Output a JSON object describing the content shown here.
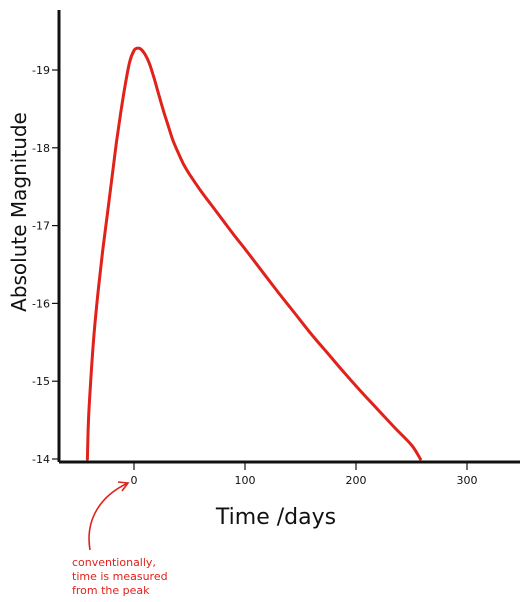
{
  "chart_data": {
    "type": "line",
    "title": "",
    "xlabel": "Time /days",
    "ylabel": "Absolute Magnitude",
    "xlim": [
      -60,
      350
    ],
    "ylim": [
      -14,
      -19.7
    ],
    "x_ticks": [
      0,
      100,
      200,
      300
    ],
    "x_tick_labels": [
      "0",
      "100",
      "200",
      "300"
    ],
    "y_ticks": [
      -19,
      -18,
      -17,
      -16,
      -15,
      -14
    ],
    "y_tick_labels": [
      "-19",
      "-18",
      "-17",
      "-16",
      "-15",
      "-14"
    ],
    "grid": false,
    "legend": "none",
    "series": [
      {
        "color": "#e0221b",
        "x": [
          -42,
          -41,
          -39,
          -36,
          -32,
          -28,
          -24,
          -20,
          -16,
          -12,
          -8,
          -4,
          0,
          3,
          6,
          10,
          14,
          18,
          22,
          26,
          30,
          35,
          40,
          45,
          50,
          60,
          70,
          80,
          90,
          100,
          115,
          130,
          145,
          160,
          175,
          190,
          205,
          220,
          235,
          250,
          258
        ],
        "y": [
          -14.0,
          -14.5,
          -15.0,
          -15.6,
          -16.2,
          -16.7,
          -17.15,
          -17.6,
          -18.05,
          -18.45,
          -18.8,
          -19.1,
          -19.25,
          -19.28,
          -19.27,
          -19.2,
          -19.08,
          -18.9,
          -18.7,
          -18.5,
          -18.32,
          -18.1,
          -17.93,
          -17.78,
          -17.66,
          -17.45,
          -17.26,
          -17.07,
          -16.88,
          -16.7,
          -16.42,
          -16.14,
          -15.87,
          -15.6,
          -15.35,
          -15.1,
          -14.86,
          -14.63,
          -14.4,
          -14.18,
          -14.0
        ]
      }
    ],
    "annotations": [
      {
        "lines": [
          "conventionally,",
          "time is measured",
          "from the peak"
        ],
        "points_to_x": 0,
        "color": "#e0221b"
      }
    ]
  }
}
